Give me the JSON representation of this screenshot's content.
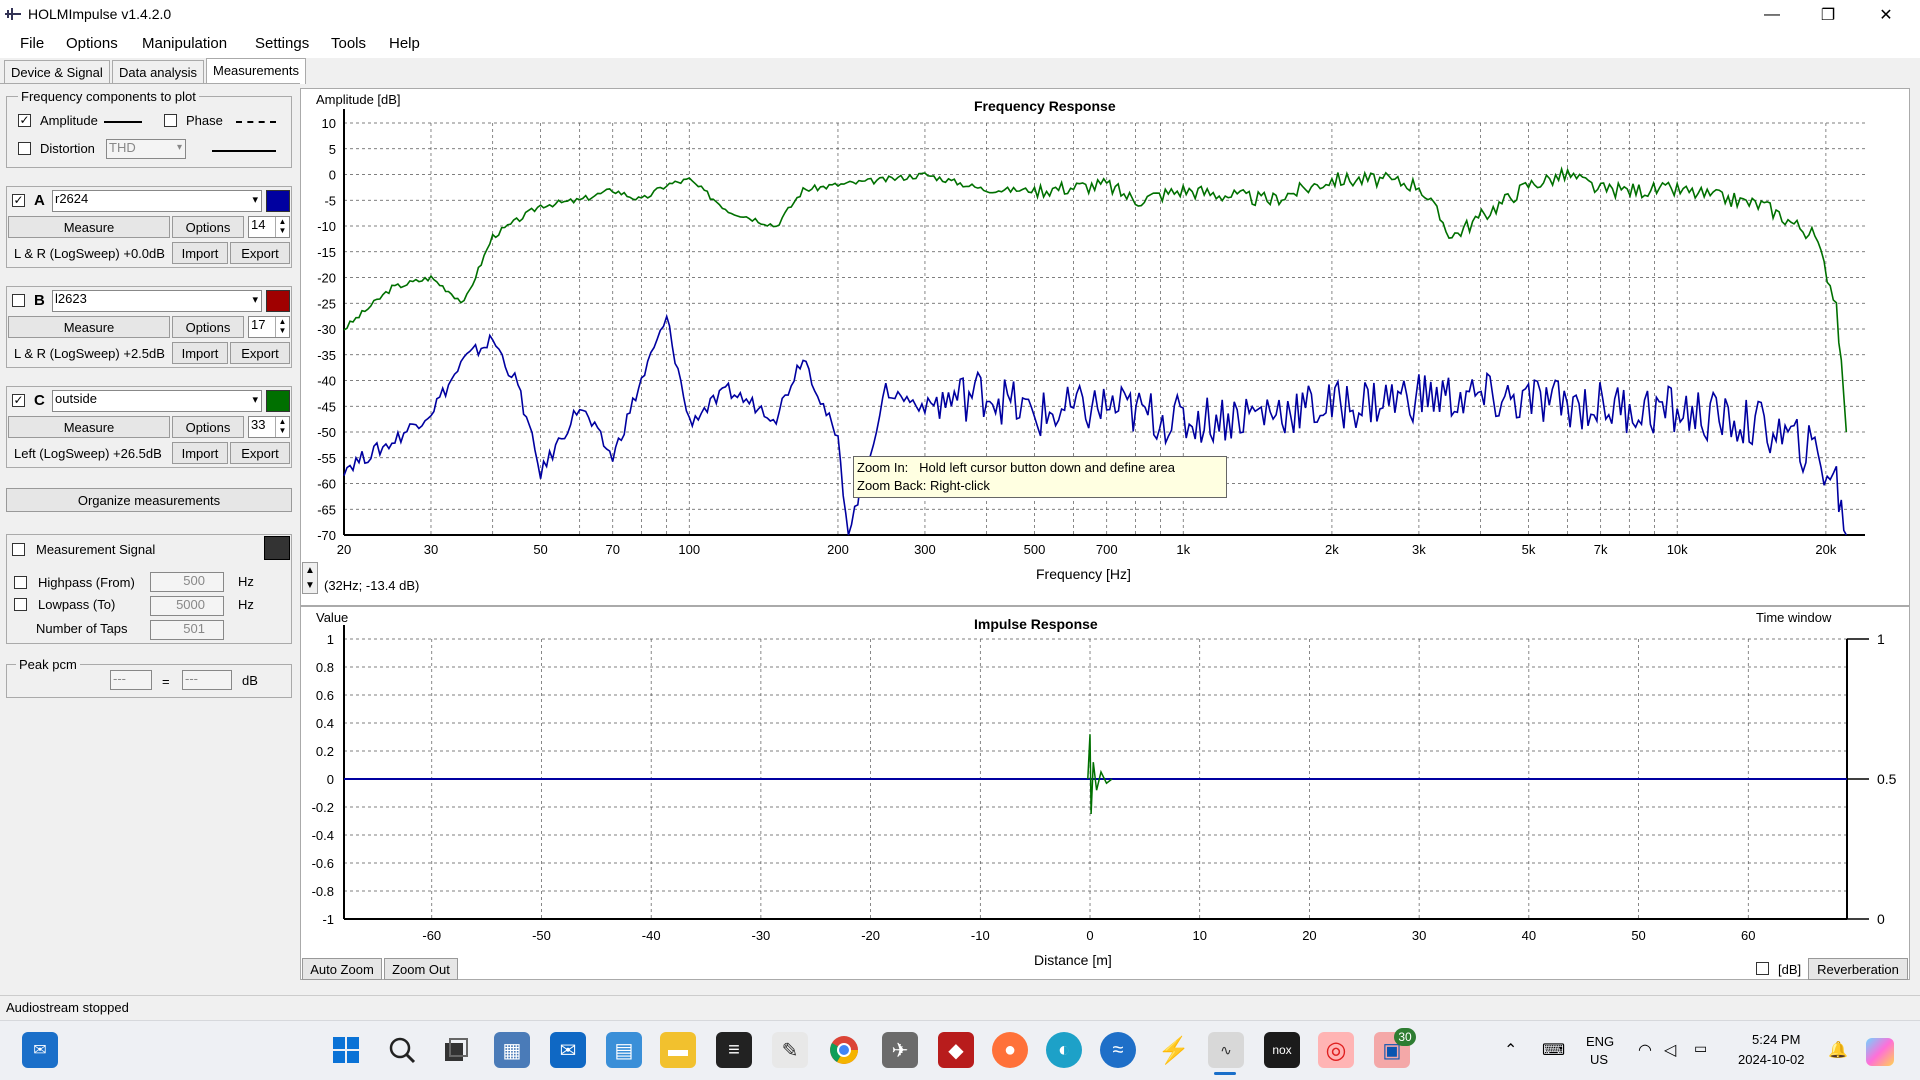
{
  "window": {
    "title": "HOLMImpulse  v1.4.2.0",
    "minimize": "—",
    "maximize": "❐",
    "close": "✕"
  },
  "menu": [
    "File",
    "Options",
    "Manipulation",
    "Settings",
    "Tools",
    "Help"
  ],
  "tabs": [
    "Device & Signal",
    "Data analysis",
    "Measurements"
  ],
  "active_tab": "Measurements",
  "freq_components": {
    "title": "Frequency components to plot",
    "amplitude": {
      "label": "Amplitude",
      "checked": true
    },
    "phase": {
      "label": "Phase",
      "checked": false
    },
    "distortion": {
      "label": "Distortion",
      "checked": false,
      "select": "THD"
    }
  },
  "measurements": [
    {
      "letter": "A",
      "checked": true,
      "name": "r2624",
      "color": "#0000a0",
      "measure": "Measure",
      "options": "Options",
      "spin": "14",
      "desc": "L & R (LogSweep) +0.0dB",
      "import": "Import",
      "export": "Export"
    },
    {
      "letter": "B",
      "checked": false,
      "name": "l2623",
      "color": "#a00000",
      "measure": "Measure",
      "options": "Options",
      "spin": "17",
      "desc": "L & R (LogSweep) +2.5dB",
      "import": "Import",
      "export": "Export"
    },
    {
      "letter": "C",
      "checked": true,
      "name": "outside",
      "color": "#007000",
      "measure": "Measure",
      "options": "Options",
      "spin": "33",
      "desc": "Left (LogSweep) +26.5dB",
      "import": "Import",
      "export": "Export"
    }
  ],
  "organize": "Organize measurements",
  "signal": {
    "label": "Measurement Signal",
    "checked": false,
    "highpass": {
      "label": "Highpass (From)",
      "value": "500",
      "unit": "Hz"
    },
    "lowpass": {
      "label": "Lowpass (To)",
      "value": "5000",
      "unit": "Hz"
    },
    "taps": {
      "label": "Number of Taps",
      "value": "501"
    }
  },
  "peak": {
    "label": "Peak pcm",
    "left": "---",
    "eq": "=",
    "right": "---",
    "unit": "dB"
  },
  "freq_plot": {
    "title": "Frequency Response",
    "ylabel": "Amplitude [dB]",
    "xlabel": "Frequency [Hz]",
    "cursor": "(32Hz; -13.4 dB)"
  },
  "tooltip": {
    "line1": "Zoom In:   Hold left cursor button down and define area",
    "line2": "Zoom Back: Right-click"
  },
  "impulse_plot": {
    "title": "Impulse Response",
    "ylabel": "Value",
    "xlabel": "Distance [m]",
    "right_label": "Time window",
    "right_ticks": [
      "1",
      "0.5",
      "0"
    ]
  },
  "buttons": {
    "auto_zoom": "Auto Zoom",
    "zoom_out": "Zoom Out",
    "db": "[dB]",
    "reverberation": "Reverberation"
  },
  "status": "Audiostream stopped",
  "taskbar": {
    "lang": "ENG",
    "region": "US",
    "time": "5:24 PM",
    "date": "2024-10-02",
    "badge": "30"
  },
  "chart_data": [
    {
      "type": "line",
      "title": "Frequency Response",
      "xlabel": "Frequency [Hz]",
      "ylabel": "Amplitude [dB]",
      "x_scale": "log",
      "xlim": [
        20,
        24000
      ],
      "ylim": [
        -70,
        10
      ],
      "x_tick_labels": [
        "20",
        "30",
        "50",
        "70",
        "100",
        "200",
        "300",
        "500",
        "700",
        "1k",
        "2k",
        "3k",
        "5k",
        "7k",
        "10k",
        "20k"
      ],
      "y_tick_labels": [
        "10",
        "5",
        "0",
        "-5",
        "-10",
        "-15",
        "-20",
        "-25",
        "-30",
        "-35",
        "-40",
        "-45",
        "-50",
        "-55",
        "-60",
        "-65",
        "-70"
      ],
      "grid": true,
      "series": [
        {
          "color": "#007000",
          "x": [
            20,
            25,
            30,
            33,
            35,
            40,
            50,
            60,
            70,
            80,
            90,
            100,
            120,
            150,
            170,
            200,
            250,
            300,
            400,
            500,
            700,
            800,
            1000,
            1500,
            2000,
            2500,
            3000,
            3500,
            5000,
            6000,
            7000,
            10000,
            15000,
            19000,
            21000,
            22000
          ],
          "y": [
            -30,
            -22,
            -20,
            -23,
            -25,
            -12,
            -6,
            -5,
            -3,
            -5,
            -2,
            -1,
            -7,
            -10,
            -3,
            -2,
            -1,
            0,
            -3,
            -3,
            -2,
            -5,
            -3,
            -5,
            -1,
            -1,
            -2,
            -12,
            -2,
            0,
            -3,
            -3,
            -6,
            -12,
            -25,
            -50
          ]
        },
        {
          "color": "#0000a0",
          "x": [
            20,
            25,
            30,
            33,
            35,
            40,
            45,
            50,
            60,
            70,
            80,
            90,
            100,
            120,
            150,
            170,
            200,
            210,
            250,
            300,
            400,
            500,
            700,
            1000,
            1500,
            2000,
            3000,
            5000,
            10000,
            15000,
            19000,
            21000,
            22000
          ],
          "y": [
            -57,
            -52,
            -46,
            -40,
            -36,
            -32,
            -41,
            -58,
            -45,
            -55,
            -40,
            -28,
            -48,
            -42,
            -47,
            -35,
            -52,
            -70,
            -42,
            -45,
            -42,
            -47,
            -45,
            -48,
            -46,
            -45,
            -43,
            -44,
            -46,
            -49,
            -54,
            -60,
            -70
          ]
        }
      ]
    },
    {
      "type": "line",
      "title": "Impulse Response",
      "xlabel": "Distance [m]",
      "ylabel": "Value",
      "xlim": [
        -68,
        69
      ],
      "ylim": [
        -1,
        1
      ],
      "x_tick_labels": [
        "-60",
        "-50",
        "-40",
        "-30",
        "-20",
        "-10",
        "0",
        "10",
        "20",
        "30",
        "40",
        "50",
        "60"
      ],
      "y_tick_labels": [
        "1",
        "0.8",
        "0.6",
        "0.4",
        "0.2",
        "0",
        "-0.2",
        "-0.4",
        "-0.6",
        "-0.8",
        "-1"
      ],
      "grid": true,
      "series": [
        {
          "color": "#0000a0",
          "x": [
            -68,
            69
          ],
          "y": [
            0,
            0
          ]
        },
        {
          "color": "#007000",
          "x": [
            -0.2,
            0,
            0.1,
            0.3,
            0.6,
            1.0,
            1.5,
            2.0
          ],
          "y": [
            0,
            0.32,
            -0.25,
            0.12,
            -0.08,
            0.05,
            -0.03,
            0
          ]
        }
      ]
    }
  ]
}
